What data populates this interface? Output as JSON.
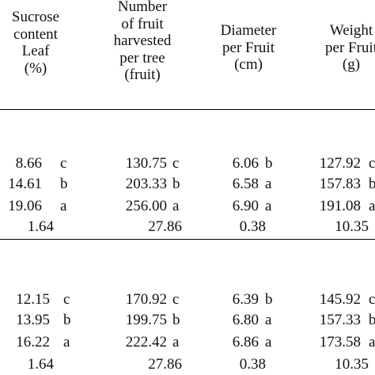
{
  "table": {
    "header": {
      "sucrose": [
        "Sucrose",
        "content",
        "Leaf",
        "(%)"
      ],
      "fruit_count": [
        "Number",
        "of fruit",
        "harvested",
        "per tree",
        "(fruit)"
      ],
      "diameter": [
        "Diameter",
        "per Fruit",
        "(cm)"
      ],
      "weight": [
        "Weight",
        "per Fruit",
        "(g)"
      ]
    },
    "group1": {
      "rows": [
        {
          "sucrose": "8.66",
          "sucrose_l": "c",
          "fruit": "130.75",
          "fruit_l": "c",
          "diam": "6.06",
          "diam_l": "b",
          "weight": "127.92",
          "weight_l": "c"
        },
        {
          "sucrose": "14.61",
          "sucrose_l": "b",
          "fruit": "203.33",
          "fruit_l": "b",
          "diam": "6.58",
          "diam_l": "a",
          "weight": "157.83",
          "weight_l": "b"
        },
        {
          "sucrose": "19.06",
          "sucrose_l": "a",
          "fruit": "256.00",
          "fruit_l": "a",
          "diam": "6.90",
          "diam_l": "a",
          "weight": "191.08",
          "weight_l": "a"
        }
      ],
      "lsd": {
        "sucrose": "1.64",
        "fruit": "27.86",
        "diam": "0.38",
        "weight": "10.35"
      }
    },
    "group2": {
      "rows": [
        {
          "sucrose": "12.15",
          "sucrose_l": "c",
          "fruit": "170.92",
          "fruit_l": "c",
          "diam": "6.39",
          "diam_l": "b",
          "weight": "145.92",
          "weight_l": "c"
        },
        {
          "sucrose": "13.95",
          "sucrose_l": "b",
          "fruit": "199.75",
          "fruit_l": "b",
          "diam": "6.80",
          "diam_l": "a",
          "weight": "157.33",
          "weight_l": "b"
        },
        {
          "sucrose": "16.22",
          "sucrose_l": "a",
          "fruit": "222.42",
          "fruit_l": "a",
          "diam": "6.86",
          "diam_l": "a",
          "weight": "173.58",
          "weight_l": "a"
        }
      ],
      "lsd": {
        "sucrose": "1.64",
        "fruit": "27.86",
        "diam": "0.38",
        "weight": "10.35"
      }
    }
  }
}
